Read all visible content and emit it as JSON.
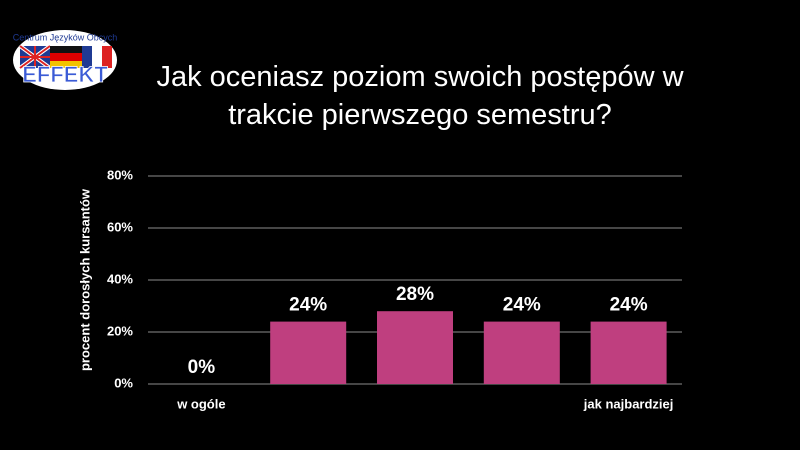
{
  "logo": {
    "caption": "Centrum Języków Obcych",
    "name": "EFFEKT"
  },
  "chart_data": {
    "type": "bar",
    "title": "Jak oceniasz poziom swoich postępów w trakcie pierwszego semestru?",
    "y_label": "procent dorosłych kursantów",
    "categories": [
      "w ogóle",
      null,
      null,
      null,
      "jak najbardziej"
    ],
    "values": [
      0,
      24,
      28,
      24,
      24
    ],
    "value_labels": [
      "0%",
      "24%",
      "28%",
      "24%",
      "24%"
    ],
    "color": "#bf3f7f",
    "ylim": [
      0,
      80
    ],
    "yticks": [
      {
        "value": 0,
        "label": "0%"
      },
      {
        "value": 20,
        "label": "20%"
      },
      {
        "value": 40,
        "label": "40%"
      },
      {
        "value": 60,
        "label": "60%"
      },
      {
        "value": 80,
        "label": "80%"
      }
    ],
    "grid": true
  }
}
